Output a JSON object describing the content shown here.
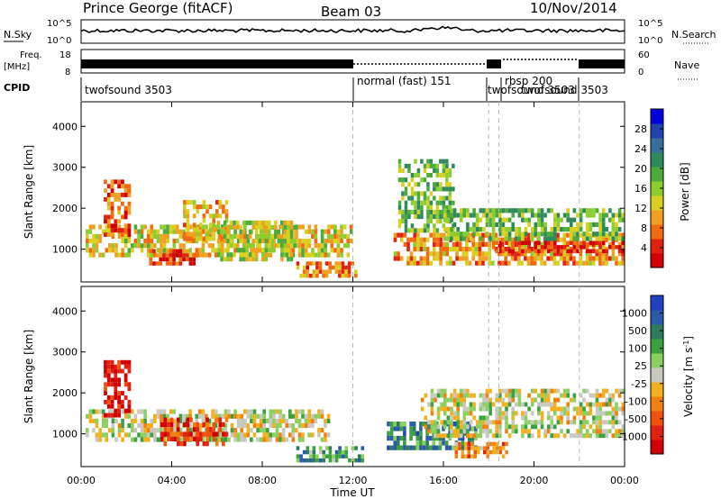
{
  "header": {
    "station": "Prince George (fitACF)",
    "beam": "Beam 03",
    "date": "10/Nov/2014"
  },
  "strips": {
    "nsky": {
      "label": "N.Sky",
      "tick_top": "10^5",
      "tick_bottom": "10^0"
    },
    "nsearch": {
      "label": "N.Search",
      "tick_top": "10^5",
      "tick_bottom": "10^0"
    },
    "freq": {
      "label_line1": "Freq.",
      "label_line2": "[MHz]",
      "tick_top": "18",
      "tick_bottom": "8"
    },
    "nave": {
      "label": "Nave",
      "tick_top": "60",
      "tick_bottom": "0"
    },
    "cpid": {
      "label": "CPID",
      "programs": [
        {
          "text": "twofsound 3503",
          "start_hr": 0.0
        },
        {
          "text": "normal (fast) 151",
          "start_hr": 12.0
        },
        {
          "text": "twofsound 3503",
          "start_hr": 18.0
        },
        {
          "text": "rbsp 200",
          "start_hr": 18.45
        },
        {
          "text": "twofsound 3503",
          "start_hr": 22.0
        }
      ]
    }
  },
  "chart_data": [
    {
      "type": "heatmap",
      "name": "power-panel",
      "ylabel": "Slant Range [km]",
      "xlim": [
        0,
        24
      ],
      "ylim": [
        200,
        4600
      ],
      "yticks": [
        1000,
        2000,
        3000,
        4000
      ],
      "colorbar": {
        "label": "Power [dB]",
        "ticks": [
          "4",
          "8",
          "12",
          "16",
          "20",
          "24",
          "28"
        ],
        "colors": [
          "#0000dd",
          "#2244aa",
          "#3a6e9a",
          "#2e8a5a",
          "#4caa3a",
          "#8ccc30",
          "#d8d020",
          "#f0a020",
          "#f06a10",
          "#e02010",
          "#d00000"
        ]
      },
      "echo_regions": [
        {
          "t0": 0.2,
          "t1": 12.0,
          "r0": 800,
          "r1": 1600,
          "level": 0.6
        },
        {
          "t0": 1.0,
          "t1": 2.2,
          "r0": 1300,
          "r1": 2700,
          "level": 0.8
        },
        {
          "t0": 3.0,
          "t1": 5.2,
          "r0": 600,
          "r1": 1000,
          "level": 0.85
        },
        {
          "t0": 4.5,
          "t1": 6.5,
          "r0": 1200,
          "r1": 2200,
          "level": 0.65
        },
        {
          "t0": 6.0,
          "t1": 9.5,
          "r0": 700,
          "r1": 1700,
          "level": 0.55
        },
        {
          "t0": 9.5,
          "t1": 12.2,
          "r0": 300,
          "r1": 700,
          "level": 0.75
        },
        {
          "t0": 13.8,
          "t1": 24.0,
          "r0": 600,
          "r1": 1400,
          "level": 0.7
        },
        {
          "t0": 14.0,
          "t1": 16.5,
          "r0": 1400,
          "r1": 3200,
          "level": 0.45
        },
        {
          "t0": 16.0,
          "t1": 24.0,
          "r0": 1200,
          "r1": 2000,
          "level": 0.45
        },
        {
          "t0": 18.0,
          "t1": 24.0,
          "r0": 900,
          "r1": 1200,
          "level": 0.9
        }
      ]
    },
    {
      "type": "heatmap",
      "name": "velocity-panel",
      "ylabel": "Slant Range [km]",
      "xlabel": "Time UT",
      "xlim": [
        0,
        24
      ],
      "ylim": [
        200,
        4600
      ],
      "yticks": [
        1000,
        2000,
        3000,
        4000
      ],
      "xticks": [
        "00:00",
        "04:00",
        "08:00",
        "12:00",
        "16:00",
        "20:00",
        "00:00"
      ],
      "colorbar": {
        "label": "Velocity [m s^-1]",
        "ticks": [
          "1000",
          "500",
          "100",
          "25",
          "-25",
          "-100",
          "-500",
          "-1000"
        ],
        "colors": [
          "#2040c0",
          "#2a5aa8",
          "#2e7a5a",
          "#3aa040",
          "#8ad060",
          "#c8c8c0",
          "#f0b020",
          "#f08010",
          "#f05010",
          "#e02010",
          "#d00000"
        ]
      },
      "echo_regions": [
        {
          "t0": 0.2,
          "t1": 11.0,
          "r0": 800,
          "r1": 1600,
          "level": 0.5
        },
        {
          "t0": 1.0,
          "t1": 2.2,
          "r0": 1400,
          "r1": 2800,
          "level": 0.95
        },
        {
          "t0": 3.5,
          "t1": 6.5,
          "r0": 700,
          "r1": 1400,
          "level": 0.85
        },
        {
          "t0": 9.5,
          "t1": 12.5,
          "r0": 300,
          "r1": 700,
          "level": 0.3
        },
        {
          "t0": 13.5,
          "t1": 17.5,
          "r0": 600,
          "r1": 1300,
          "level": 0.22
        },
        {
          "t0": 15.0,
          "t1": 24.0,
          "r0": 900,
          "r1": 2100,
          "level": 0.5
        },
        {
          "t0": 16.5,
          "t1": 19.0,
          "r0": 400,
          "r1": 800,
          "level": 0.7
        }
      ]
    }
  ]
}
